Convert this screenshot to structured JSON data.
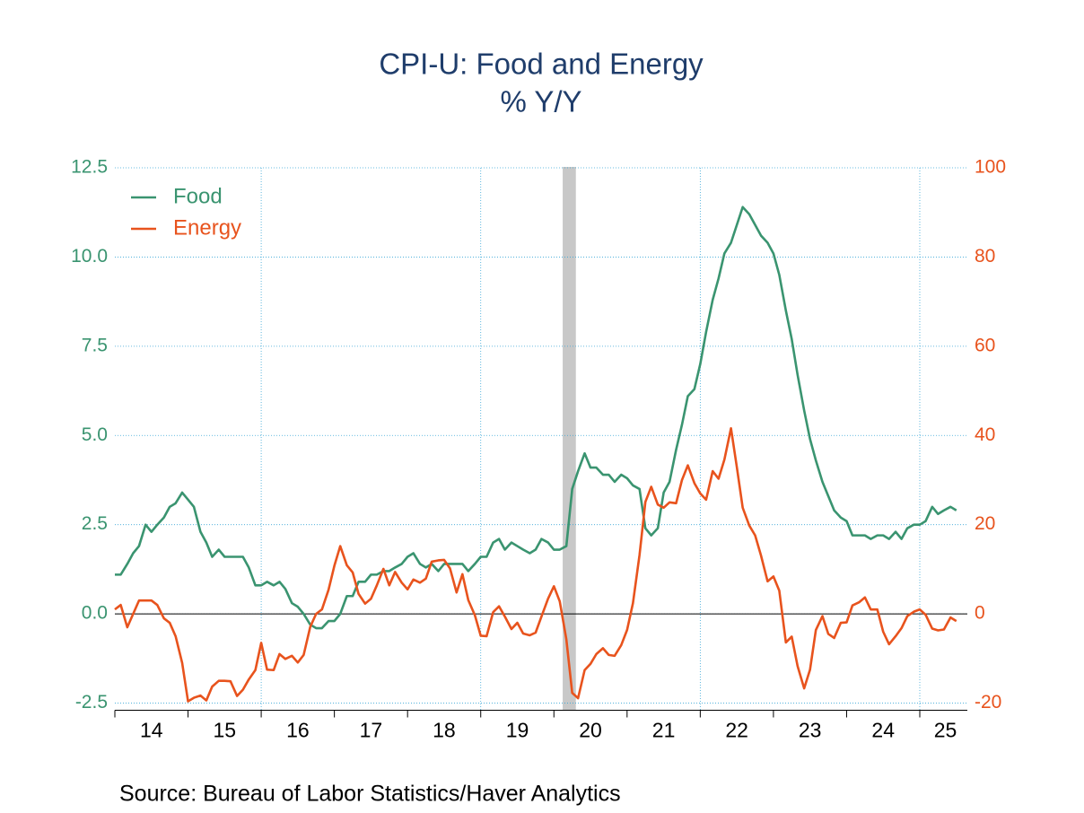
{
  "chart_data": {
    "type": "line",
    "title": "CPI-U: Food and Energy",
    "subtitle": "% Y/Y",
    "source": "Source:  Bureau of Labor Statistics/Haver Analytics",
    "x": [
      2014,
      2014.08,
      2014.17,
      2014.25,
      2014.33,
      2014.42,
      2014.5,
      2014.58,
      2014.67,
      2014.75,
      2014.83,
      2014.92,
      2015,
      2015.08,
      2015.17,
      2015.25,
      2015.33,
      2015.42,
      2015.5,
      2015.58,
      2015.67,
      2015.75,
      2015.83,
      2015.92,
      2016,
      2016.08,
      2016.17,
      2016.25,
      2016.33,
      2016.42,
      2016.5,
      2016.58,
      2016.67,
      2016.75,
      2016.83,
      2016.92,
      2017,
      2017.08,
      2017.17,
      2017.25,
      2017.33,
      2017.42,
      2017.5,
      2017.58,
      2017.67,
      2017.75,
      2017.83,
      2017.92,
      2018,
      2018.08,
      2018.17,
      2018.25,
      2018.33,
      2018.42,
      2018.5,
      2018.58,
      2018.67,
      2018.75,
      2018.83,
      2018.92,
      2019,
      2019.08,
      2019.17,
      2019.25,
      2019.33,
      2019.42,
      2019.5,
      2019.58,
      2019.67,
      2019.75,
      2019.83,
      2019.92,
      2020,
      2020.08,
      2020.17,
      2020.25,
      2020.33,
      2020.42,
      2020.5,
      2020.58,
      2020.67,
      2020.75,
      2020.83,
      2020.92,
      2021,
      2021.08,
      2021.17,
      2021.25,
      2021.33,
      2021.42,
      2021.5,
      2021.58,
      2021.67,
      2021.75,
      2021.83,
      2021.92,
      2022,
      2022.08,
      2022.17,
      2022.25,
      2022.33,
      2022.42,
      2022.5,
      2022.58,
      2022.67,
      2022.75,
      2022.83,
      2022.92,
      2023,
      2023.08,
      2023.17,
      2023.25,
      2023.33,
      2023.42,
      2023.5,
      2023.58,
      2023.67,
      2023.75,
      2023.83,
      2023.92,
      2024,
      2024.08,
      2024.17,
      2024.25,
      2024.33,
      2024.42,
      2024.5,
      2024.58,
      2024.67,
      2024.75,
      2024.83,
      2024.92,
      2025,
      2025.08,
      2025.17,
      2025.25,
      2025.33,
      2025.42,
      2025.5
    ],
    "series": [
      {
        "name": "Food",
        "color": "#3a9470",
        "values": [
          1.1,
          1.1,
          1.4,
          1.7,
          1.9,
          2.5,
          2.3,
          2.5,
          2.7,
          3.0,
          3.1,
          3.4,
          3.2,
          3.0,
          2.3,
          2.0,
          1.6,
          1.8,
          1.6,
          1.6,
          1.6,
          1.6,
          1.3,
          0.8,
          0.8,
          0.9,
          0.8,
          0.9,
          0.7,
          0.3,
          0.2,
          0.0,
          -0.3,
          -0.4,
          -0.4,
          -0.2,
          -0.2,
          0.0,
          0.5,
          0.5,
          0.9,
          0.9,
          1.1,
          1.1,
          1.2,
          1.2,
          1.3,
          1.4,
          1.6,
          1.7,
          1.4,
          1.3,
          1.4,
          1.2,
          1.4,
          1.4,
          1.4,
          1.4,
          1.2,
          1.4,
          1.6,
          1.6,
          2.0,
          2.1,
          1.8,
          2.0,
          1.9,
          1.8,
          1.7,
          1.8,
          2.1,
          2.0,
          1.8,
          1.8,
          1.9,
          3.5,
          4.0,
          4.5,
          4.1,
          4.1,
          3.9,
          3.9,
          3.7,
          3.9,
          3.8,
          3.6,
          3.5,
          2.4,
          2.2,
          2.4,
          3.4,
          3.7,
          4.6,
          5.3,
          6.1,
          6.3,
          7.0,
          7.9,
          8.8,
          9.4,
          10.1,
          10.4,
          10.9,
          11.4,
          11.2,
          10.9,
          10.6,
          10.4,
          10.1,
          9.5,
          8.5,
          7.7,
          6.7,
          5.7,
          4.9,
          4.3,
          3.7,
          3.3,
          2.9,
          2.7,
          2.6,
          2.2,
          2.2,
          2.2,
          2.1,
          2.2,
          2.2,
          2.1,
          2.3,
          2.1,
          2.4,
          2.5,
          2.5,
          2.6,
          3.0,
          2.8,
          2.9,
          3.0,
          2.9
        ]
      },
      {
        "name": "Energy",
        "color": "#e8531d",
        "axis": "y2",
        "values": [
          1,
          2,
          -3,
          0,
          3,
          3,
          3,
          2,
          -1,
          -2,
          -5,
          -11,
          -19.6,
          -18.8,
          -18.3,
          -19.4,
          -16.3,
          -15,
          -15.0,
          -15.1,
          -18.4,
          -17.0,
          -14.7,
          -12.6,
          -6.5,
          -12.5,
          -12.6,
          -9.0,
          -10.1,
          -9.4,
          -10.9,
          -9.2,
          -2.9,
          0.0,
          1.0,
          5.4,
          10.8,
          15.2,
          10.9,
          9.3,
          4.5,
          2.3,
          3.4,
          6.4,
          10.1,
          6.4,
          9.4,
          7.0,
          5.5,
          7.7,
          7.0,
          7.9,
          11.7,
          12.0,
          12.1,
          10.2,
          4.8,
          8.9,
          3.1,
          -0.3,
          -4.9,
          -5.0,
          0.4,
          1.7,
          -0.6,
          -3.4,
          -2.0,
          -4.4,
          -4.8,
          -4.2,
          -0.6,
          3.4,
          6.2,
          2.8,
          -5.7,
          -17.7,
          -18.9,
          -12.6,
          -11.2,
          -9.0,
          -7.7,
          -9.2,
          -9.4,
          -7.0,
          -3.6,
          2.4,
          13.2,
          25.1,
          28.5,
          24.5,
          23.8,
          25.0,
          24.8,
          30.0,
          33.3,
          29.3,
          27.0,
          25.6,
          32.0,
          30.3,
          34.6,
          41.6,
          32.9,
          23.8,
          19.8,
          17.6,
          13.1,
          7.3,
          8.4,
          5.2,
          -6.4,
          -5.1,
          -11.7,
          -16.7,
          -12.5,
          -3.6,
          -0.5,
          -4.5,
          -5.4,
          -2.0,
          -1.9,
          1.9,
          2.6,
          3.7,
          1.0,
          1.0,
          -4.0,
          -6.8,
          -5.0,
          -3.2,
          -0.5,
          0.5,
          1.0,
          -0.2,
          -3.3,
          -3.7,
          -3.5,
          -0.8,
          -1.6
        ]
      }
    ],
    "xlim": [
      2014,
      2025.65
    ],
    "xticks": [
      2014,
      2015,
      2016,
      2017,
      2018,
      2019,
      2020,
      2021,
      2022,
      2023,
      2024,
      2025
    ],
    "xtick_labels": [
      {
        "value": 2014.5,
        "label": "14"
      },
      {
        "value": 2015.5,
        "label": "15"
      },
      {
        "value": 2016.5,
        "label": "16"
      },
      {
        "value": 2017.5,
        "label": "17"
      },
      {
        "value": 2018.5,
        "label": "18"
      },
      {
        "value": 2019.5,
        "label": "19"
      },
      {
        "value": 2020.5,
        "label": "20"
      },
      {
        "value": 2021.5,
        "label": "21"
      },
      {
        "value": 2022.5,
        "label": "22"
      },
      {
        "value": 2023.5,
        "label": "23"
      },
      {
        "value": 2024.5,
        "label": "24"
      },
      {
        "value": 2025.35,
        "label": "25"
      }
    ],
    "xgrid": [
      2016,
      2019,
      2022,
      2025
    ],
    "shaded_range": [
      2020.12,
      2020.3
    ],
    "ylim": [
      -2.7,
      12.5
    ],
    "yticks": [
      {
        "value": 12.5,
        "label": "12.5"
      },
      {
        "value": 10,
        "label": "10.0"
      },
      7.5,
      {
        "value": 5,
        "label": "5.0"
      },
      2.5,
      {
        "value": 0,
        "label": "0.0"
      },
      -2.5
    ],
    "y2lim": [
      -21.6,
      100
    ],
    "y2ticks": [
      100,
      80,
      60,
      40,
      20,
      0,
      -20
    ],
    "grid": true,
    "legend": "upper left"
  }
}
